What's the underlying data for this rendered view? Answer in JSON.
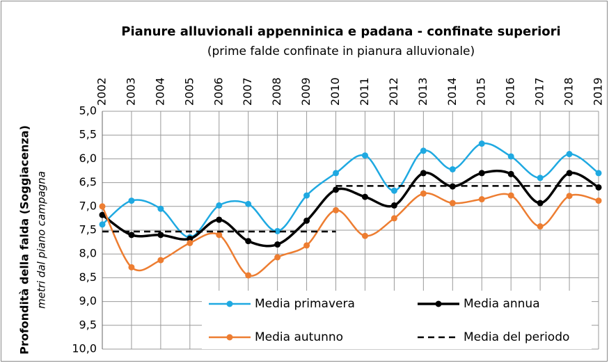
{
  "chart_data": {
    "type": "line",
    "title": "Pianure alluvionali  appenninica e padana - confinate superiori",
    "subtitle": "(prime falde confinate in pianura alluvionale)",
    "ylabel": "Profondità della falda (Soggiacenza)",
    "ylabel_sub": "metri dal piano campagna",
    "categories": [
      "2002",
      "2003",
      "2004",
      "2005",
      "2006",
      "2007",
      "2008",
      "2009",
      "2010",
      "2011",
      "2012",
      "2013",
      "2014",
      "2015",
      "2016",
      "2017",
      "2018",
      "2019"
    ],
    "ylim": [
      5,
      10
    ],
    "y_inverted": true,
    "yticks": [
      {
        "value": 5,
        "label": "5,0"
      },
      {
        "value": 5.5,
        "label": "5,5"
      },
      {
        "value": 6,
        "label": "6,0"
      },
      {
        "value": 6.5,
        "label": "6,5"
      },
      {
        "value": 7,
        "label": "7,0"
      },
      {
        "value": 7.5,
        "label": "7,5"
      },
      {
        "value": 8,
        "label": "8,0"
      },
      {
        "value": 8.5,
        "label": "8,5"
      },
      {
        "value": 9,
        "label": "9,0"
      },
      {
        "value": 9.5,
        "label": "9,5"
      },
      {
        "value": 10,
        "label": "10,0"
      }
    ],
    "grid": true,
    "series": [
      {
        "name": "Media primavera",
        "color": "#1fa9e1",
        "values": [
          7.38,
          6.88,
          7.05,
          7.65,
          6.98,
          6.95,
          7.52,
          6.77,
          6.3,
          5.93,
          6.67,
          5.83,
          6.22,
          5.68,
          5.95,
          6.4,
          5.9,
          6.3
        ]
      },
      {
        "name": "Media annua",
        "color": "#000000",
        "values": [
          7.18,
          7.6,
          7.6,
          7.68,
          7.28,
          7.73,
          7.8,
          7.3,
          6.65,
          6.8,
          6.98,
          6.3,
          6.58,
          6.3,
          6.32,
          6.93,
          6.3,
          6.6
        ]
      },
      {
        "name": "Media autunno",
        "color": "#ed7d31",
        "values": [
          7.0,
          8.28,
          8.13,
          7.77,
          7.6,
          8.45,
          8.07,
          7.82,
          7.08,
          7.62,
          7.25,
          6.73,
          6.93,
          6.85,
          6.77,
          7.42,
          6.78,
          6.88
        ]
      },
      {
        "name": "Media del periodo",
        "color": "#000000",
        "dashed": true,
        "segments": [
          {
            "start": "2002",
            "end": "2010",
            "value": 7.53
          },
          {
            "start": "2010",
            "end": "2019",
            "value": 6.57
          }
        ]
      }
    ]
  }
}
